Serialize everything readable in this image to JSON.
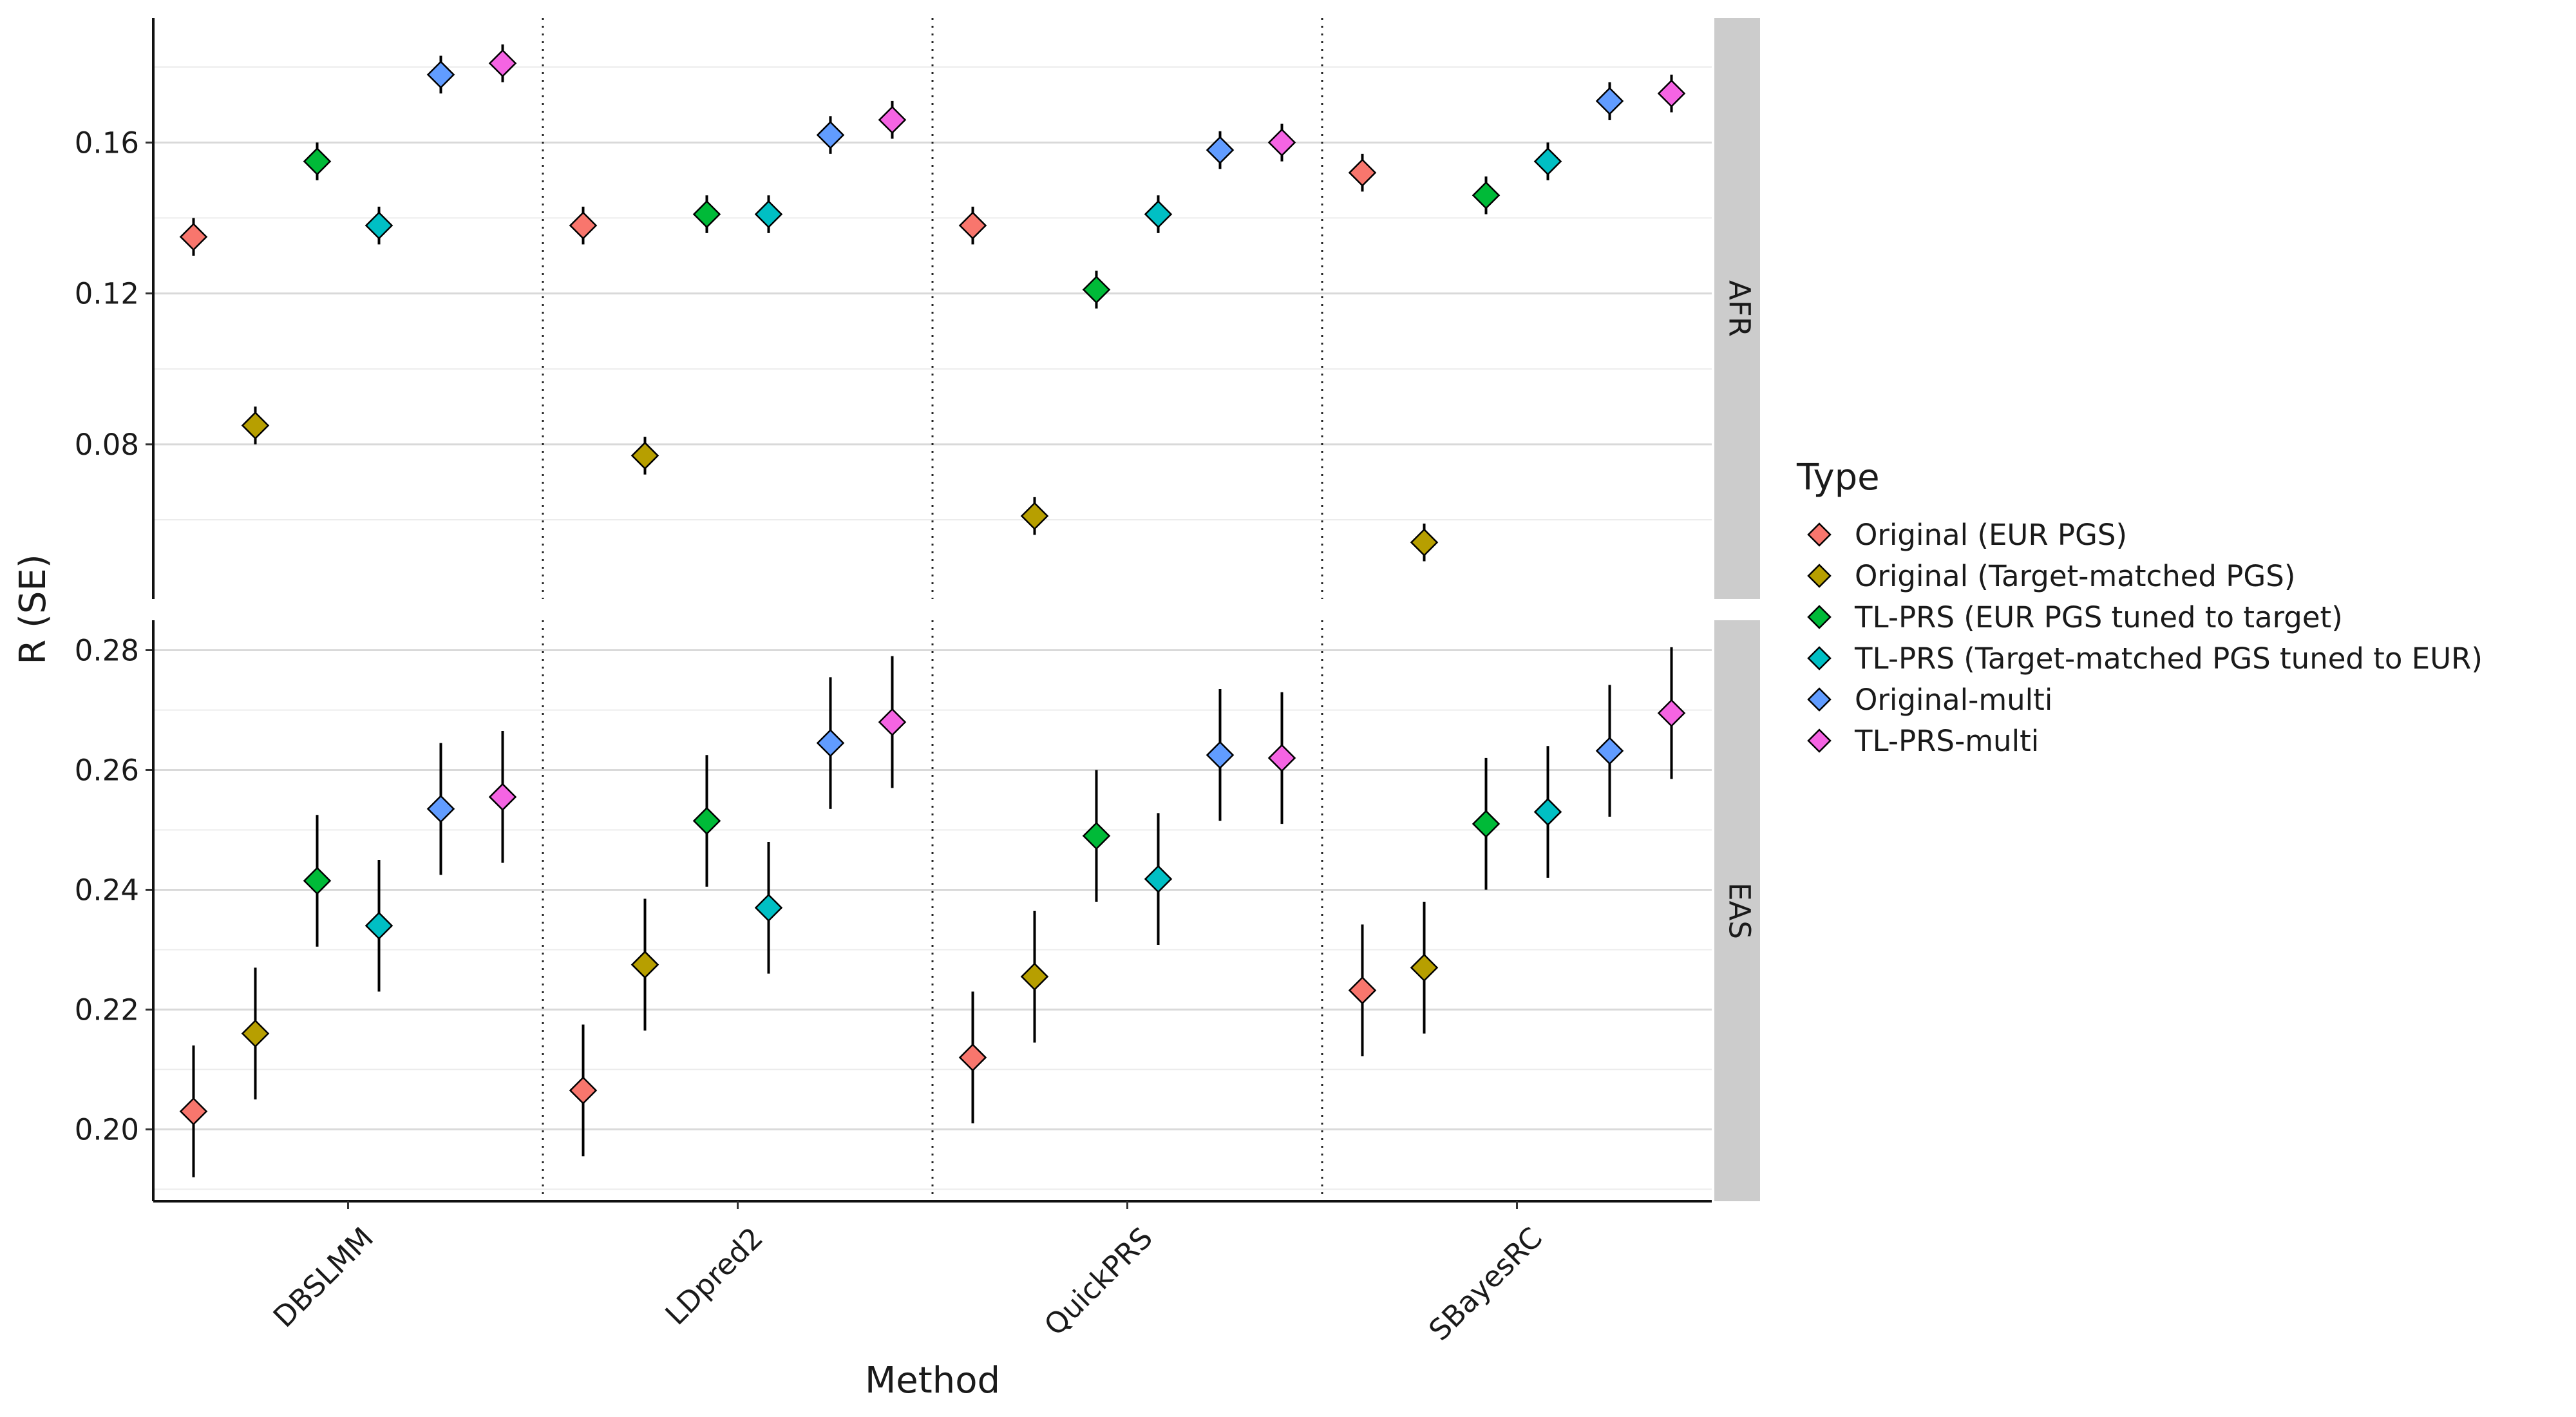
{
  "chart_data": {
    "type": "scatter",
    "title": "",
    "xlabel": "Method",
    "ylabel": "R (SE)",
    "categories": [
      "DBSLMM",
      "LDpred2",
      "QuickPRS",
      "SBayesRC"
    ],
    "legend": {
      "title": "Type",
      "placement": "right",
      "items": [
        {
          "label": "Original (EUR PGS)",
          "color": "#F8766D"
        },
        {
          "label": "Original (Target-matched PGS)",
          "color": "#B79F00"
        },
        {
          "label": "TL-PRS (EUR PGS tuned to target)",
          "color": "#00BA38"
        },
        {
          "label": "TL-PRS (Target-matched PGS tuned to EUR)",
          "color": "#00BFC4"
        },
        {
          "label": "Original-multi",
          "color": "#619CFF"
        },
        {
          "label": "TL-PRS-multi",
          "color": "#F564E3"
        }
      ]
    },
    "marker": "diamond",
    "grid": true,
    "panels": [
      {
        "strip": "AFR",
        "ylim": [
          0.039,
          0.193
        ],
        "yticks": [
          "0.08",
          "0.12",
          "0.16"
        ],
        "series": [
          {
            "name": "Original (EUR PGS)",
            "values": [
              0.135,
              0.138,
              0.138,
              0.152
            ],
            "se": [
              0.005,
              0.005,
              0.005,
              0.005
            ]
          },
          {
            "name": "Original (Target-matched PGS)",
            "values": [
              0.085,
              0.077,
              0.061,
              0.054
            ],
            "se": [
              0.005,
              0.005,
              0.005,
              0.005
            ]
          },
          {
            "name": "TL-PRS (EUR PGS tuned to target)",
            "values": [
              0.155,
              0.141,
              0.121,
              0.146
            ],
            "se": [
              0.005,
              0.005,
              0.005,
              0.005
            ]
          },
          {
            "name": "TL-PRS (Target-matched PGS tuned to EUR)",
            "values": [
              0.138,
              0.141,
              0.141,
              0.155
            ],
            "se": [
              0.005,
              0.005,
              0.005,
              0.005
            ]
          },
          {
            "name": "Original-multi",
            "values": [
              0.178,
              0.162,
              0.158,
              0.171
            ],
            "se": [
              0.005,
              0.005,
              0.005,
              0.005
            ]
          },
          {
            "name": "TL-PRS-multi",
            "values": [
              0.181,
              0.166,
              0.16,
              0.173
            ],
            "se": [
              0.005,
              0.005,
              0.005,
              0.005
            ]
          }
        ]
      },
      {
        "strip": "EAS",
        "ylim": [
          0.188,
          0.285
        ],
        "yticks": [
          "0.20",
          "0.22",
          "0.24",
          "0.26",
          "0.28"
        ],
        "series": [
          {
            "name": "Original (EUR PGS)",
            "values": [
              0.203,
              0.2065,
              0.212,
              0.2232
            ],
            "se": [
              0.011,
              0.011,
              0.011,
              0.011
            ]
          },
          {
            "name": "Original (Target-matched PGS)",
            "values": [
              0.216,
              0.2275,
              0.2255,
              0.227
            ],
            "se": [
              0.011,
              0.011,
              0.011,
              0.011
            ]
          },
          {
            "name": "TL-PRS (EUR PGS tuned to target)",
            "values": [
              0.2415,
              0.2515,
              0.249,
              0.251
            ],
            "se": [
              0.011,
              0.011,
              0.011,
              0.011
            ]
          },
          {
            "name": "TL-PRS (Target-matched PGS tuned to EUR)",
            "values": [
              0.234,
              0.237,
              0.2418,
              0.253
            ],
            "se": [
              0.011,
              0.011,
              0.011,
              0.011
            ]
          },
          {
            "name": "Original-multi",
            "values": [
              0.2535,
              0.2645,
              0.2625,
              0.2632
            ],
            "se": [
              0.011,
              0.011,
              0.011,
              0.011
            ]
          },
          {
            "name": "TL-PRS-multi",
            "values": [
              0.2555,
              0.268,
              0.262,
              0.2695
            ],
            "se": [
              0.011,
              0.011,
              0.011,
              0.011
            ]
          }
        ]
      }
    ]
  }
}
